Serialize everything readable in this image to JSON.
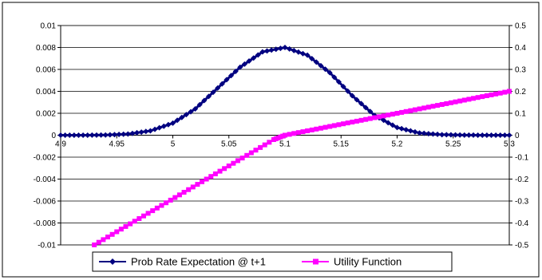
{
  "chart_data": {
    "type": "line",
    "title": "",
    "xlabel": "",
    "ylabel_left": "",
    "ylabel_right": "",
    "x_ticks": [
      "4.9",
      "4.95",
      "5",
      "5.05",
      "5.1",
      "5.15",
      "5.2",
      "5.25",
      "5.3"
    ],
    "x_tick_values": [
      4.9,
      4.95,
      5.0,
      5.05,
      5.1,
      5.15,
      5.2,
      5.25,
      5.3
    ],
    "y_left_ticks": [
      "0.01",
      "0.008",
      "0.006",
      "0.004",
      "0.002",
      "0",
      "-0.002",
      "-0.004",
      "-0.006",
      "-0.008",
      "-0.01"
    ],
    "y_left_tick_values": [
      0.01,
      0.008,
      0.006,
      0.004,
      0.002,
      0,
      -0.002,
      -0.004,
      -0.006,
      -0.008,
      -0.01
    ],
    "y_right_ticks": [
      "0.5",
      "0.4",
      "0.3",
      "0.2",
      "0.1",
      "0",
      "-0.1",
      "-0.2",
      "-0.3",
      "-0.4",
      "-0.5"
    ],
    "y_right_tick_values": [
      0.5,
      0.4,
      0.3,
      0.2,
      0.1,
      0,
      -0.1,
      -0.2,
      -0.3,
      -0.4,
      -0.5
    ],
    "xlim": [
      4.9,
      5.3
    ],
    "ylim_left": [
      -0.01,
      0.01
    ],
    "ylim_right": [
      -0.5,
      0.5
    ],
    "grid": "horizontal",
    "legend_position": "bottom",
    "series": [
      {
        "name": "Prob Rate Expectation @ t+1",
        "axis": "left",
        "color": "#000080",
        "marker": "diamond",
        "x": [
          4.9,
          4.92,
          4.94,
          4.96,
          4.98,
          5.0,
          5.02,
          5.04,
          5.06,
          5.08,
          5.1,
          5.12,
          5.14,
          5.16,
          5.18,
          5.2,
          5.22,
          5.24,
          5.26,
          5.28,
          5.3
        ],
        "y": [
          0.0,
          0.0,
          2e-05,
          0.00011,
          0.0004,
          0.0011,
          0.0024,
          0.0043,
          0.0062,
          0.0076,
          0.008,
          0.0073,
          0.0057,
          0.0036,
          0.0018,
          0.0007,
          0.0002,
          5e-05,
          1e-05,
          0.0,
          0.0
        ]
      },
      {
        "name": "Utility Function",
        "axis": "right",
        "color": "#ff00ff",
        "marker": "square",
        "x": [
          4.93,
          4.95,
          4.97,
          4.99,
          5.01,
          5.03,
          5.05,
          5.07,
          5.09,
          5.1,
          5.12,
          5.14,
          5.16,
          5.18,
          5.2,
          5.22,
          5.24,
          5.26,
          5.28,
          5.3
        ],
        "y": [
          -0.5,
          -0.44,
          -0.38,
          -0.32,
          -0.26,
          -0.2,
          -0.14,
          -0.08,
          -0.02,
          0.0,
          0.02,
          0.04,
          0.06,
          0.08,
          0.1,
          0.12,
          0.14,
          0.16,
          0.18,
          0.2
        ]
      }
    ]
  }
}
